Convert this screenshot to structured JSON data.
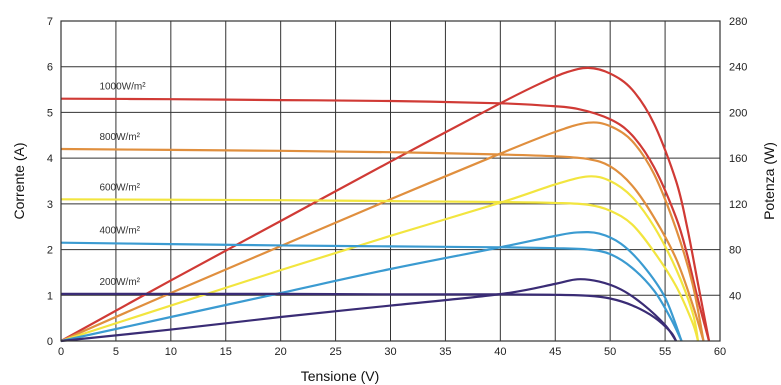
{
  "chart_data": {
    "type": "line",
    "xlabel": "Tensione (V)",
    "ylabel": "Corrente (A)",
    "y2label": "Potenza (W)",
    "xlim": [
      0,
      60
    ],
    "ylim": [
      0,
      7
    ],
    "y2lim": [
      0,
      280
    ],
    "x_ticks": [
      "0",
      "5",
      "10",
      "15",
      "20",
      "25",
      "30",
      "35",
      "40",
      "45",
      "50",
      "55",
      "60"
    ],
    "y_ticks": [
      "0",
      "1",
      "2",
      "3",
      "4",
      "5",
      "6",
      "7"
    ],
    "y2_ticks": [
      "40",
      "80",
      "120",
      "160",
      "200",
      "240",
      "280"
    ],
    "grid": true,
    "series": [
      {
        "name": "1000W/m²",
        "color": "#d03a35",
        "current": [
          [
            0,
            5.3
          ],
          [
            10,
            5.29
          ],
          [
            20,
            5.27
          ],
          [
            30,
            5.25
          ],
          [
            40,
            5.2
          ],
          [
            44,
            5.15
          ],
          [
            47,
            5.08
          ],
          [
            50,
            4.85
          ],
          [
            52,
            4.5
          ],
          [
            54,
            3.8
          ],
          [
            56,
            2.7
          ],
          [
            57,
            1.9
          ],
          [
            58,
            0.9
          ],
          [
            59,
            0
          ]
        ],
        "power": [
          [
            0,
            0
          ],
          [
            10,
            53
          ],
          [
            20,
            105
          ],
          [
            30,
            157
          ],
          [
            40,
            208
          ],
          [
            44,
            227
          ],
          [
            46,
            235
          ],
          [
            48,
            239
          ],
          [
            50,
            234
          ],
          [
            52,
            220
          ],
          [
            54,
            190
          ],
          [
            56,
            140
          ],
          [
            57,
            100
          ],
          [
            58,
            50
          ],
          [
            59,
            0
          ]
        ]
      },
      {
        "name": "800W/m²",
        "color": "#e08f3e",
        "current": [
          [
            0,
            4.2
          ],
          [
            10,
            4.18
          ],
          [
            20,
            4.16
          ],
          [
            30,
            4.13
          ],
          [
            40,
            4.08
          ],
          [
            45,
            4.04
          ],
          [
            48,
            3.98
          ],
          [
            50,
            3.82
          ],
          [
            52,
            3.4
          ],
          [
            54,
            2.7
          ],
          [
            56,
            1.8
          ],
          [
            57.5,
            0.8
          ],
          [
            58.5,
            0
          ]
        ],
        "power": [
          [
            0,
            0
          ],
          [
            10,
            42
          ],
          [
            20,
            83
          ],
          [
            30,
            124
          ],
          [
            40,
            164
          ],
          [
            45,
            183
          ],
          [
            48,
            191
          ],
          [
            50,
            188
          ],
          [
            52,
            175
          ],
          [
            54,
            146
          ],
          [
            56,
            98
          ],
          [
            57.5,
            50
          ],
          [
            58.5,
            0
          ]
        ]
      },
      {
        "name": "600W/m²",
        "color": "#f2e53f",
        "current": [
          [
            0,
            3.1
          ],
          [
            10,
            3.09
          ],
          [
            20,
            3.08
          ],
          [
            30,
            3.06
          ],
          [
            40,
            3.04
          ],
          [
            45,
            3.02
          ],
          [
            48,
            2.98
          ],
          [
            50,
            2.85
          ],
          [
            52,
            2.55
          ],
          [
            54,
            1.95
          ],
          [
            56,
            1.2
          ],
          [
            57.5,
            0.4
          ],
          [
            58,
            0
          ]
        ],
        "power": [
          [
            0,
            0
          ],
          [
            10,
            31
          ],
          [
            20,
            62
          ],
          [
            30,
            92
          ],
          [
            40,
            121
          ],
          [
            45,
            137
          ],
          [
            48,
            144
          ],
          [
            50,
            140
          ],
          [
            52,
            126
          ],
          [
            54,
            100
          ],
          [
            56,
            63
          ],
          [
            57.5,
            25
          ],
          [
            58,
            0
          ]
        ]
      },
      {
        "name": "400W/m²",
        "color": "#3b9bd1",
        "current": [
          [
            0,
            2.15
          ],
          [
            10,
            2.12
          ],
          [
            20,
            2.09
          ],
          [
            30,
            2.07
          ],
          [
            40,
            2.05
          ],
          [
            45,
            2.03
          ],
          [
            48,
            2.0
          ],
          [
            50,
            1.9
          ],
          [
            52,
            1.6
          ],
          [
            54,
            1.1
          ],
          [
            55.5,
            0.5
          ],
          [
            56.5,
            0
          ]
        ],
        "power": [
          [
            0,
            0
          ],
          [
            10,
            21
          ],
          [
            20,
            42
          ],
          [
            30,
            63
          ],
          [
            40,
            82
          ],
          [
            45,
            92
          ],
          [
            47,
            95
          ],
          [
            49,
            94
          ],
          [
            51,
            85
          ],
          [
            53,
            66
          ],
          [
            55,
            38
          ],
          [
            56.5,
            0
          ]
        ]
      },
      {
        "name": "200W/m²",
        "color": "#3a2c75",
        "current": [
          [
            0,
            1.03
          ],
          [
            10,
            1.03
          ],
          [
            20,
            1.03
          ],
          [
            30,
            1.02
          ],
          [
            40,
            1.02
          ],
          [
            45,
            1.01
          ],
          [
            48,
            0.99
          ],
          [
            50,
            0.93
          ],
          [
            52,
            0.78
          ],
          [
            54,
            0.52
          ],
          [
            55.5,
            0.2
          ],
          [
            56,
            0
          ]
        ],
        "power": [
          [
            0,
            0
          ],
          [
            10,
            10
          ],
          [
            20,
            21
          ],
          [
            30,
            31
          ],
          [
            40,
            41
          ],
          [
            45,
            50
          ],
          [
            47,
            54
          ],
          [
            49,
            52
          ],
          [
            51,
            45
          ],
          [
            53,
            32
          ],
          [
            55,
            14
          ],
          [
            56,
            0
          ]
        ]
      }
    ]
  }
}
